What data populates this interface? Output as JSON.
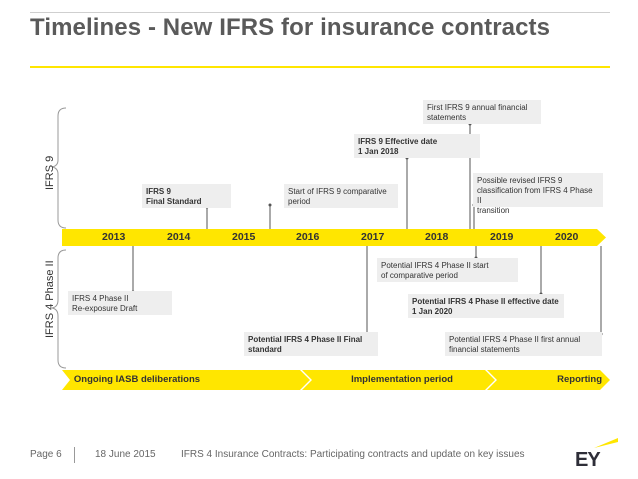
{
  "slide": {
    "title": "Timelines - New IFRS for insurance contracts"
  },
  "axis_labels": {
    "top": "IFRS 9",
    "bottom": "IFRS 4 Phase II"
  },
  "colors": {
    "ey_yellow": "#ffe600",
    "box_grey": "#eeeeee",
    "text_dark": "#333333",
    "title_grey": "#5a5a5a"
  },
  "years": [
    "2013",
    "2014",
    "2015",
    "2016",
    "2017",
    "2018",
    "2019",
    "2020"
  ],
  "ifrs9_events": [
    {
      "line1": "First IFRS 9 annual financial",
      "line2": "statements"
    },
    {
      "line1": "IFRS 9 Effective date",
      "line2": "1 Jan 2018"
    },
    {
      "line1": "IFRS 9",
      "line2": "Final Standard"
    },
    {
      "line1": "Start of IFRS 9 comparative",
      "line2": "period"
    },
    {
      "line1": "Possible revised IFRS 9",
      "line2": "classification from IFRS 4 Phase II",
      "line3": "transition"
    }
  ],
  "ifrs4_events": [
    {
      "line1": "IFRS 4 Phase II",
      "line2": "Re-exposure Draft"
    },
    {
      "line1": "Potential IFRS 4 Phase II start",
      "line2": "of comparative period"
    },
    {
      "line1": "Potential IFRS 4 Phase II effective date",
      "line2": "1 Jan 2020"
    },
    {
      "line1": "Potential IFRS 4 Phase II Final",
      "line2": "standard"
    },
    {
      "line1": "Potential IFRS 4 Phase II first annual",
      "line2": "financial statements"
    }
  ],
  "phases": [
    "Ongoing IASB deliberations",
    "Implementation period",
    "Reporting"
  ],
  "footer": {
    "page": "Page 6",
    "date": "18 June 2015",
    "subtitle": "IFRS 4 Insurance Contracts: Participating contracts and update on key issues",
    "logo": "EY"
  }
}
